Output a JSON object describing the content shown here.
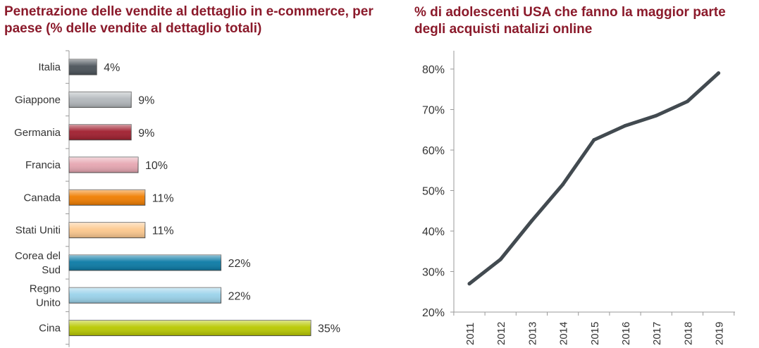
{
  "chart_data": [
    {
      "type": "bar",
      "orientation": "horizontal",
      "title": "Penetrazione delle vendite al dettaglio in e-commerce, per paese (% delle vendite al dettaglio totali)",
      "categories": [
        [
          "Italia"
        ],
        [
          "Giappone"
        ],
        [
          "Germania"
        ],
        [
          "Francia"
        ],
        [
          "Canada"
        ],
        [
          "Stati Uniti"
        ],
        [
          "Corea del",
          "Sud"
        ],
        [
          "Regno",
          "Unito"
        ],
        [
          "Cina"
        ]
      ],
      "values": [
        4,
        9,
        9,
        10,
        11,
        11,
        22,
        22,
        35
      ],
      "data_labels": [
        "4%",
        "9%",
        "9%",
        "10%",
        "11%",
        "11%",
        "22%",
        "22%",
        "35%"
      ],
      "colors": [
        "#4a5259",
        "#b3b8bc",
        "#a01e2e",
        "#e6a6b1",
        "#f07d00",
        "#fcc88e",
        "#0a7aa5",
        "#9ad2ea",
        "#b8c800"
      ],
      "xlim": [
        0,
        35
      ]
    },
    {
      "type": "line",
      "title": "% di adolescenti USA che fanno la maggior parte degli acquisti natalizi online",
      "x": [
        "2011",
        "2012",
        "2013",
        "2014",
        "2015",
        "2016",
        "2017",
        "2018",
        "2019"
      ],
      "values": [
        27,
        33,
        42.5,
        51.5,
        62.5,
        66,
        68.5,
        72,
        79
      ],
      "ylim": [
        20,
        80
      ],
      "y_ticks": [
        "20%",
        "30%",
        "40%",
        "50%",
        "60%",
        "70%",
        "80%"
      ],
      "line_color": "#424a50",
      "grid": false
    }
  ]
}
